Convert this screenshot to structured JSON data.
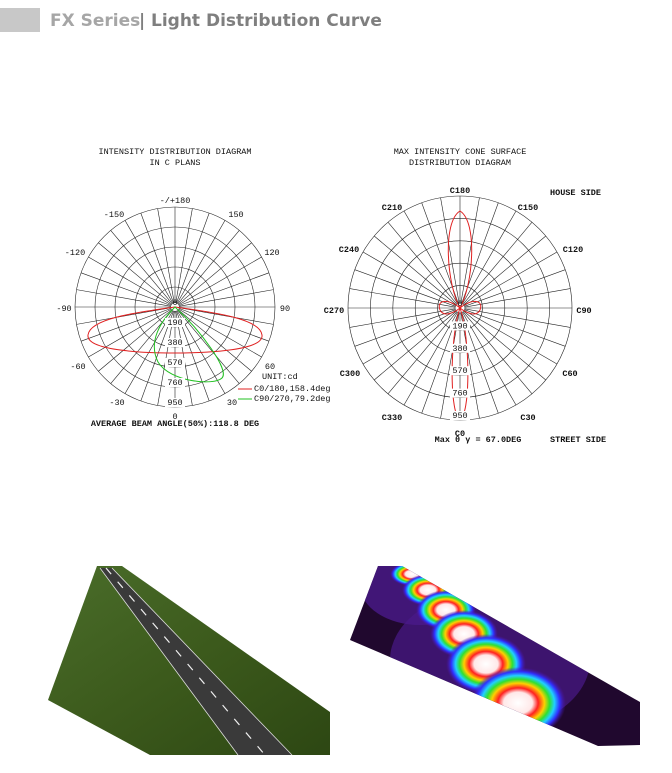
{
  "header": {
    "series": "FX Series",
    "separator": "|",
    "title": "Light Distribution Curve"
  },
  "intensity_diagram": {
    "title": [
      "INTENSITY DISTRIBUTION DIAGRAM",
      "IN C PLANS"
    ],
    "angle_labels": [
      "-/+180",
      "150",
      "-150",
      "120",
      "-120",
      "90",
      "-90",
      "60",
      "-60",
      "30",
      "-30",
      "0"
    ],
    "center_label": "0",
    "ring_labels": [
      "190",
      "380",
      "570",
      "760",
      "950"
    ],
    "unit": "UNIT:cd",
    "legend": [
      {
        "label": "C0/180,158.4deg",
        "color": "#e02020"
      },
      {
        "label": "C90/270,79.2deg",
        "color": "#20c020"
      }
    ],
    "footer": "AVERAGE BEAM ANGLE(50%):118.8 DEG"
  },
  "cone_diagram": {
    "title": [
      "MAX INTENSITY CONE SURFACE",
      "DISTRIBUTION DIAGRAM"
    ],
    "angle_labels": [
      "C180",
      "C150",
      "C210",
      "C120",
      "C240",
      "C90",
      "C270",
      "C60",
      "C300",
      "C30",
      "C330",
      "C0"
    ],
    "center_label": "0",
    "ring_labels": [
      "190",
      "380",
      "570",
      "760",
      "950"
    ],
    "house_side": "HOUSE SIDE",
    "street_side": "STREET SIDE",
    "footer": "Max θ γ = 67.0DEG"
  }
}
